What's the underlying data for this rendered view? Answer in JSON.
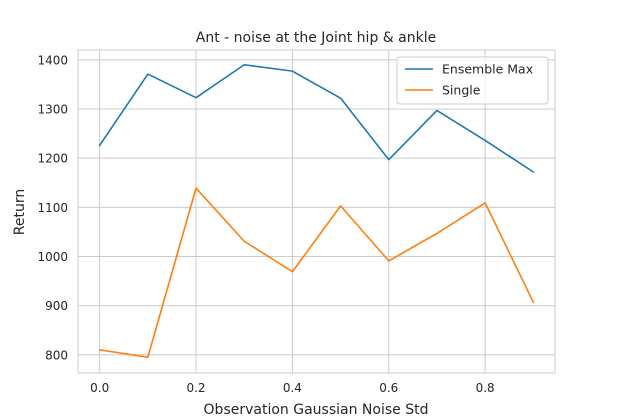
{
  "chart_data": {
    "type": "line",
    "title": "Ant - noise at the Joint hip & ankle",
    "xlabel": "Observation Gaussian Noise Std",
    "ylabel": "Return",
    "x": [
      0.0,
      0.1,
      0.2,
      0.3,
      0.4,
      0.5,
      0.6,
      0.7,
      0.8,
      0.9
    ],
    "xlim": [
      -0.045,
      0.945
    ],
    "ylim": [
      763,
      1420
    ],
    "xticks": [
      0.0,
      0.2,
      0.4,
      0.6,
      0.8
    ],
    "xtick_labels": [
      "0.0",
      "0.2",
      "0.4",
      "0.6",
      "0.8"
    ],
    "yticks": [
      800,
      900,
      1000,
      1100,
      1200,
      1300,
      1400
    ],
    "ytick_labels": [
      "800",
      "900",
      "1000",
      "1100",
      "1200",
      "1300",
      "1400"
    ],
    "grid": true,
    "legend_position": "top-right",
    "series": [
      {
        "name": "Ensemble Max",
        "color": "#1f77b4",
        "values": [
          1226,
          1371,
          1323,
          1390,
          1377,
          1322,
          1197,
          1297,
          1236,
          1172
        ]
      },
      {
        "name": "Single",
        "color": "#ff7f0e",
        "values": [
          810,
          795,
          1139,
          1031,
          969,
          1103,
          991,
          1047,
          1109,
          907
        ]
      }
    ]
  }
}
